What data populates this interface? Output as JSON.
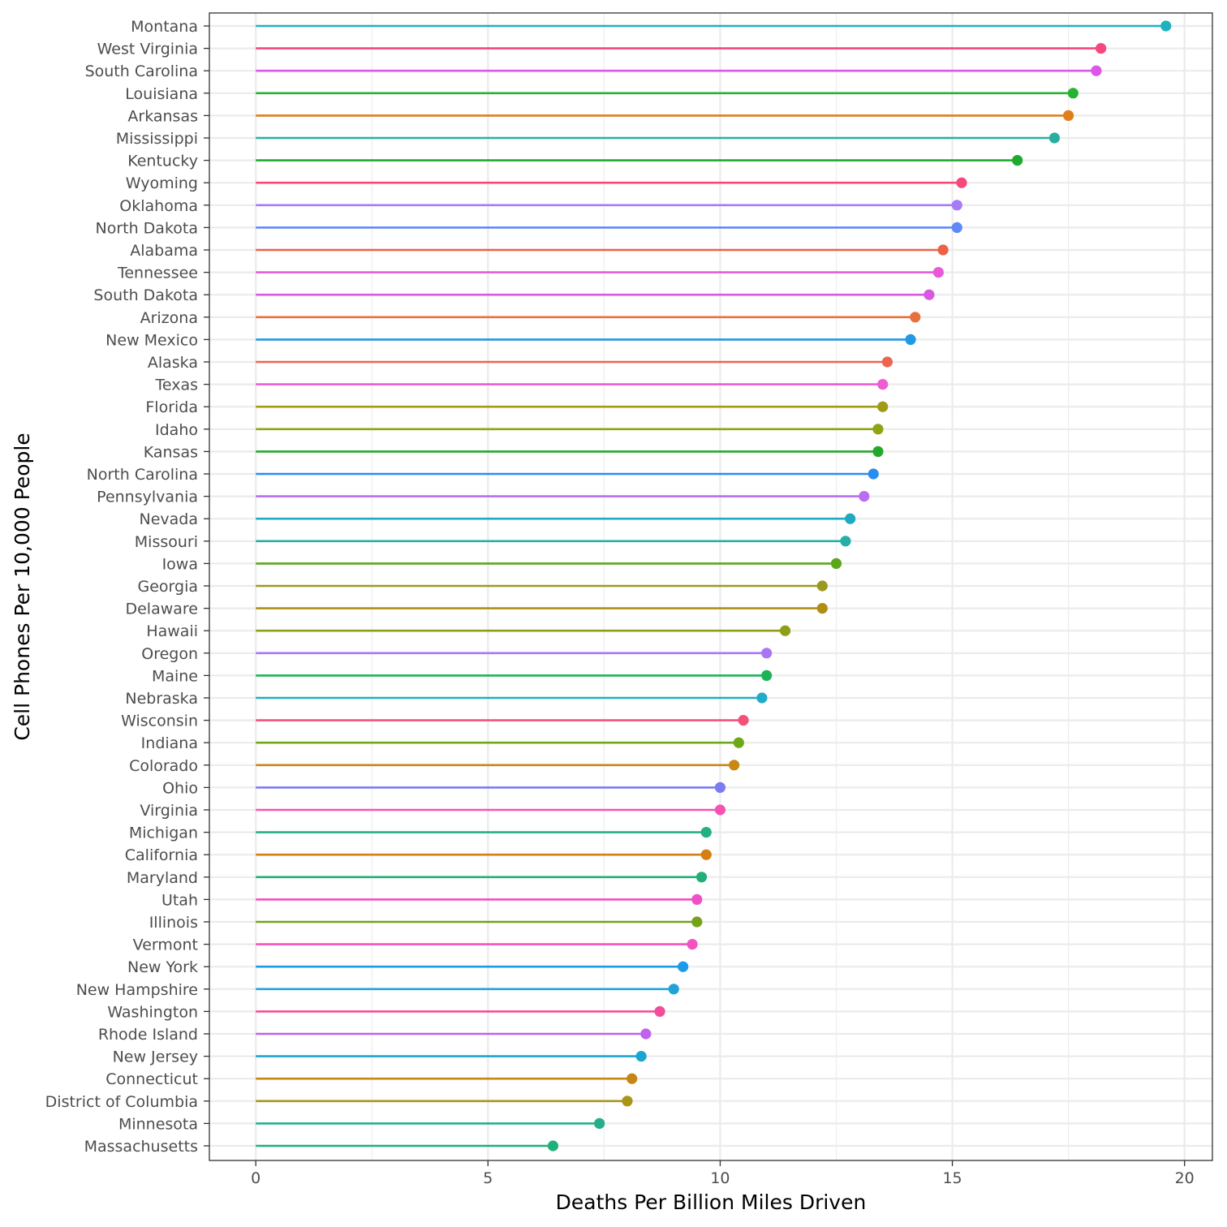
{
  "chart_data": {
    "type": "lollipop",
    "title": "",
    "xlabel": "Deaths Per Billion Miles Driven",
    "ylabel": "Cell Phones Per 10,000 People",
    "xlim": [
      -1,
      20.6
    ],
    "xticks": [
      0,
      5,
      10,
      15,
      20
    ],
    "grid": true,
    "legend": "none",
    "categories": [
      "Montana",
      "West Virginia",
      "South Carolina",
      "Louisiana",
      "Arkansas",
      "Mississippi",
      "Kentucky",
      "Wyoming",
      "Oklahoma",
      "North Dakota",
      "Alabama",
      "Tennessee",
      "South Dakota",
      "Arizona",
      "New Mexico",
      "Alaska",
      "Texas",
      "Florida",
      "Idaho",
      "Kansas",
      "North Carolina",
      "Pennsylvania",
      "Nevada",
      "Missouri",
      "Iowa",
      "Georgia",
      "Delaware",
      "Hawaii",
      "Oregon",
      "Maine",
      "Nebraska",
      "Wisconsin",
      "Indiana",
      "Colorado",
      "Ohio",
      "Virginia",
      "Michigan",
      "California",
      "Maryland",
      "Utah",
      "Illinois",
      "Vermont",
      "New York",
      "New Hampshire",
      "Washington",
      "Rhode Island",
      "New Jersey",
      "Connecticut",
      "District of Columbia",
      "Minnesota",
      "Massachusetts"
    ],
    "values": [
      19.6,
      18.2,
      18.1,
      17.6,
      17.5,
      17.2,
      16.4,
      15.2,
      15.1,
      15.1,
      14.8,
      14.7,
      14.5,
      14.2,
      14.1,
      13.6,
      13.5,
      13.5,
      13.4,
      13.4,
      13.3,
      13.1,
      12.8,
      12.7,
      12.5,
      12.2,
      12.2,
      11.4,
      11.0,
      11.0,
      10.9,
      10.5,
      10.4,
      10.3,
      10.0,
      10.0,
      9.7,
      9.7,
      9.6,
      9.5,
      9.5,
      9.4,
      9.2,
      9.0,
      8.7,
      8.4,
      8.3,
      8.1,
      8.0,
      7.4,
      6.4
    ],
    "colors": [
      "#1EB1BE",
      "#F8477D",
      "#DB57E6",
      "#27B232",
      "#E07D1C",
      "#26AFA0",
      "#1FAA2E",
      "#F6497A",
      "#A47CF5",
      "#5E8AF8",
      "#EB6245",
      "#E95AD8",
      "#D858E2",
      "#E9703A",
      "#2299E3",
      "#EB6550",
      "#EF5BD2",
      "#A09A15",
      "#8FA412",
      "#24A82C",
      "#2B8CF0",
      "#B86DF2",
      "#21A9C0",
      "#24B0A8",
      "#5DA61C",
      "#9A9A20",
      "#B08E14",
      "#8E9F17",
      "#A976F3",
      "#1CB356",
      "#20ACC8",
      "#F5507A",
      "#6EA819",
      "#C98714",
      "#7A7CF0",
      "#F553B4",
      "#25AF86",
      "#D57E13",
      "#22AE77",
      "#EF50C6",
      "#75A21B",
      "#F452BE",
      "#1C9AE8",
      "#20A3D8",
      "#F34C9A",
      "#C062EE",
      "#1DA5D2",
      "#C58614",
      "#AA9516",
      "#26AD8A",
      "#20B07A"
    ]
  }
}
